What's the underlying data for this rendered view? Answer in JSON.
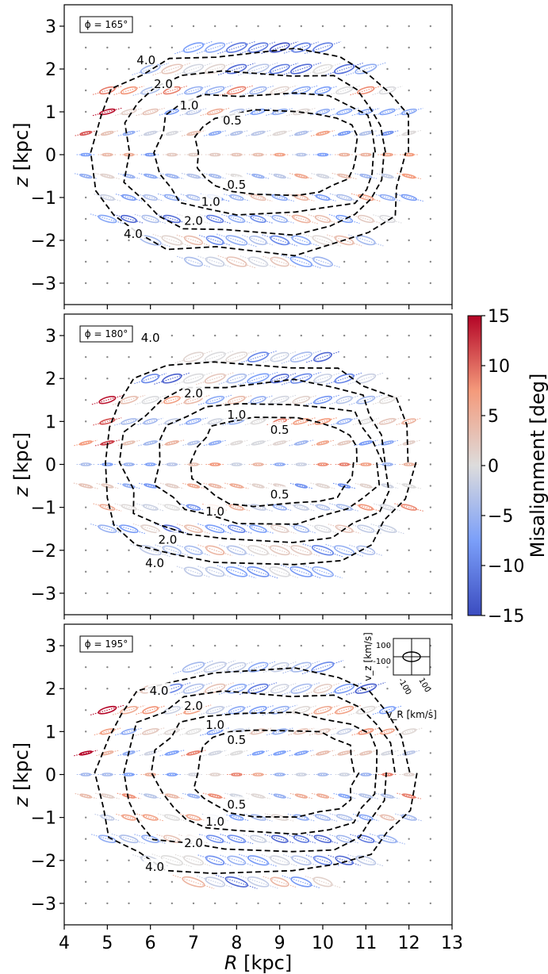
{
  "chart_data": {
    "type": "scatter",
    "description_type": "velocity-ellipse field with contour lines and colorbar",
    "shared_x": {
      "label_var": "R",
      "label_unit": "[kpc]",
      "range": [
        4,
        13
      ],
      "ticks": [
        "4",
        "5",
        "6",
        "7",
        "8",
        "9",
        "10",
        "11",
        "12",
        "13"
      ]
    },
    "y_axis": {
      "label_var": "z",
      "label_unit": "[kpc]",
      "range": [
        -3.5,
        3.5
      ],
      "ticks": [
        "−3",
        "−2",
        "−1",
        "0",
        "1",
        "2",
        "3"
      ]
    },
    "grid": false,
    "colorbar": {
      "label": "Misalignment [deg]",
      "range": [
        -15,
        15
      ],
      "ticks": [
        "−15",
        "−10",
        "−5",
        "0",
        "5",
        "10",
        "15"
      ],
      "colormap": "coolwarm",
      "colors": [
        "#3b4cc0",
        "#dddcdc",
        "#b40426"
      ]
    },
    "inset": {
      "ylabel": "v_z [km/s]",
      "xlabel": "v_R [km/s]",
      "yticks": [
        "100",
        "-100"
      ],
      "xticks": [
        "-100",
        "100"
      ]
    },
    "panels": [
      {
        "phi_label": "ϕ = 165°",
        "contours": [
          {
            "level": "0.5",
            "label_pos": [
              7.9,
              0.8
            ]
          },
          {
            "level": "1.0",
            "label_pos": [
              6.9,
              1.15
            ]
          },
          {
            "level": "2.0",
            "label_pos": [
              6.3,
              1.65
            ]
          },
          {
            "level": "4.0",
            "label_pos": [
              5.9,
              2.2
            ]
          },
          {
            "level": "0.5",
            "label_pos": [
              8.0,
              -0.7
            ]
          },
          {
            "level": "1.0",
            "label_pos": [
              7.4,
              -1.1
            ]
          },
          {
            "level": "2.0",
            "label_pos": [
              7.0,
              -1.55
            ]
          },
          {
            "level": "4.0",
            "label_pos": [
              5.6,
              -1.85
            ]
          }
        ]
      },
      {
        "phi_label": "ϕ = 180°",
        "contours": [
          {
            "level": "0.5",
            "label_pos": [
              9.0,
              0.8
            ]
          },
          {
            "level": "1.0",
            "label_pos": [
              8.0,
              1.15
            ]
          },
          {
            "level": "2.0",
            "label_pos": [
              7.0,
              1.65
            ]
          },
          {
            "level": "4.0",
            "label_pos": [
              6.0,
              2.95
            ]
          },
          {
            "level": "0.5",
            "label_pos": [
              9.0,
              -0.7
            ]
          },
          {
            "level": "1.0",
            "label_pos": [
              7.5,
              -1.1
            ]
          },
          {
            "level": "2.0",
            "label_pos": [
              6.4,
              -1.75
            ]
          },
          {
            "level": "4.0",
            "label_pos": [
              6.1,
              -2.3
            ]
          }
        ]
      },
      {
        "phi_label": "ϕ = 195°",
        "contours": [
          {
            "level": "0.5",
            "label_pos": [
              8.0,
              0.8
            ]
          },
          {
            "level": "1.0",
            "label_pos": [
              7.5,
              1.15
            ]
          },
          {
            "level": "2.0",
            "label_pos": [
              7.0,
              1.6
            ]
          },
          {
            "level": "4.0",
            "label_pos": [
              6.2,
              1.95
            ]
          },
          {
            "level": "0.5",
            "label_pos": [
              8.0,
              -0.7
            ]
          },
          {
            "level": "1.0",
            "label_pos": [
              7.5,
              -1.1
            ]
          },
          {
            "level": "2.0",
            "label_pos": [
              7.0,
              -1.6
            ]
          },
          {
            "level": "4.0",
            "label_pos": [
              6.1,
              -2.15
            ]
          }
        ]
      }
    ]
  }
}
